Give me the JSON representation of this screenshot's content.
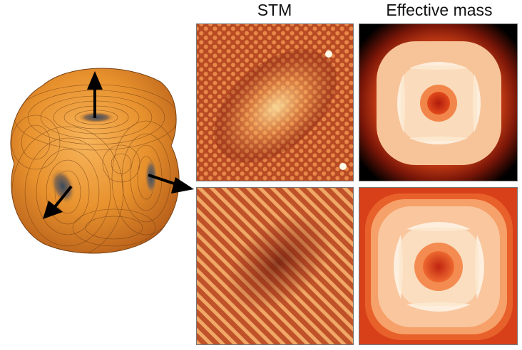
{
  "labels": {
    "stm": "STM",
    "effective_mass": "Effective mass"
  },
  "icons": {
    "fermi_surface": "orange-fermi-surface-illustration",
    "arrows": "black-direction-arrow-icon"
  },
  "colors": {
    "surface": "#e8922e",
    "stm_dark": "#8a2a14",
    "stm_light": "#f6c070",
    "mass_outer": "#000000",
    "mass_mid": "#e8501e",
    "mass_light": "#fbe6c9"
  }
}
